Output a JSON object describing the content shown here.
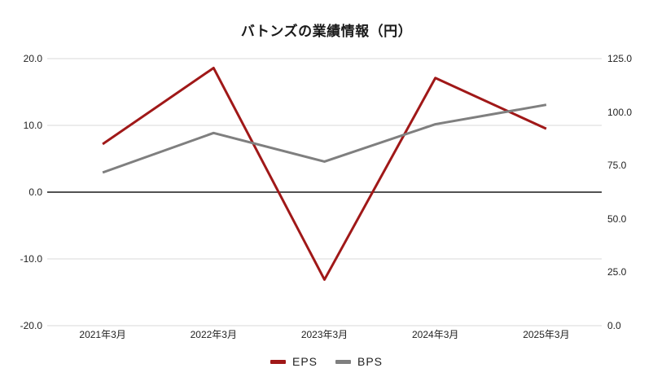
{
  "chart_data": {
    "type": "line",
    "title": "バトンズの業績情報（円）",
    "categories": [
      "2021年3月",
      "2022年3月",
      "2023年3月",
      "2024年3月",
      "2025年3月"
    ],
    "series": [
      {
        "name": "EPS",
        "axis": "left",
        "color": "#a01818",
        "values": [
          7.2,
          18.6,
          -13.1,
          17.1,
          9.5
        ]
      },
      {
        "name": "BPS",
        "axis": "right",
        "color": "#7f7f7f",
        "values": [
          71.7,
          90.2,
          76.8,
          94.3,
          103.4
        ]
      }
    ],
    "left_axis": {
      "min": -20,
      "max": 20,
      "ticks": [
        20,
        10,
        0,
        -10,
        -20
      ],
      "tick_labels": [
        "20.0",
        "10.0",
        "0.0",
        "-10.0",
        "-20.0"
      ]
    },
    "right_axis": {
      "min": 0,
      "max": 125,
      "ticks": [
        125,
        100,
        75,
        50,
        25,
        0
      ],
      "tick_labels": [
        "125.0",
        "100.0",
        "75.0",
        "50.0",
        "25.0",
        "0.0"
      ]
    },
    "grid": true,
    "zero_line": true,
    "legend_position": "bottom",
    "colors": {
      "grid": "#d9d9d9",
      "zero_line": "#3a3a3a",
      "text": "#1f1f1f",
      "background": "#ffffff"
    }
  }
}
